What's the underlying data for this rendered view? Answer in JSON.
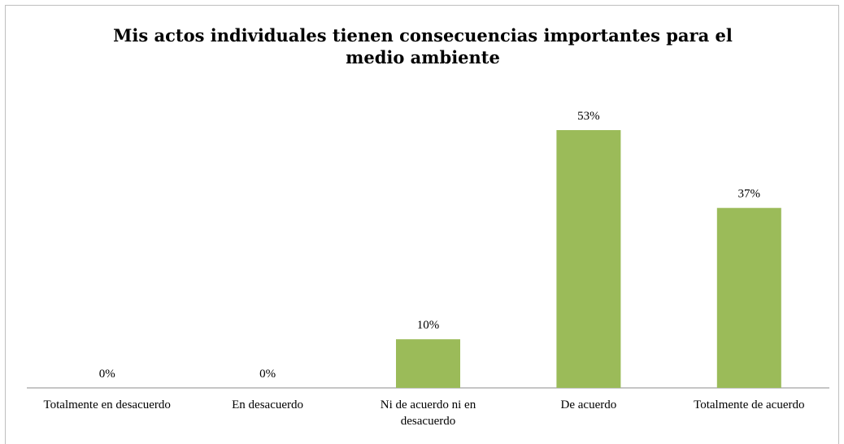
{
  "chart_data": {
    "type": "bar",
    "title": "Mis actos individuales tienen consecuencias importantes para el medio ambiente",
    "categories": [
      "Totalmente en desacuerdo",
      "En desacuerdo",
      "Ni de acuerdo ni en desacuerdo",
      "De acuerdo",
      "Totalmente de acuerdo"
    ],
    "values": [
      0,
      0,
      10,
      53,
      37
    ],
    "data_labels": [
      "0%",
      "0%",
      "10%",
      "53%",
      "37%"
    ],
    "ylim": [
      0,
      60
    ],
    "grid": false,
    "legend": "none",
    "bar_color": "#9bbb59"
  }
}
